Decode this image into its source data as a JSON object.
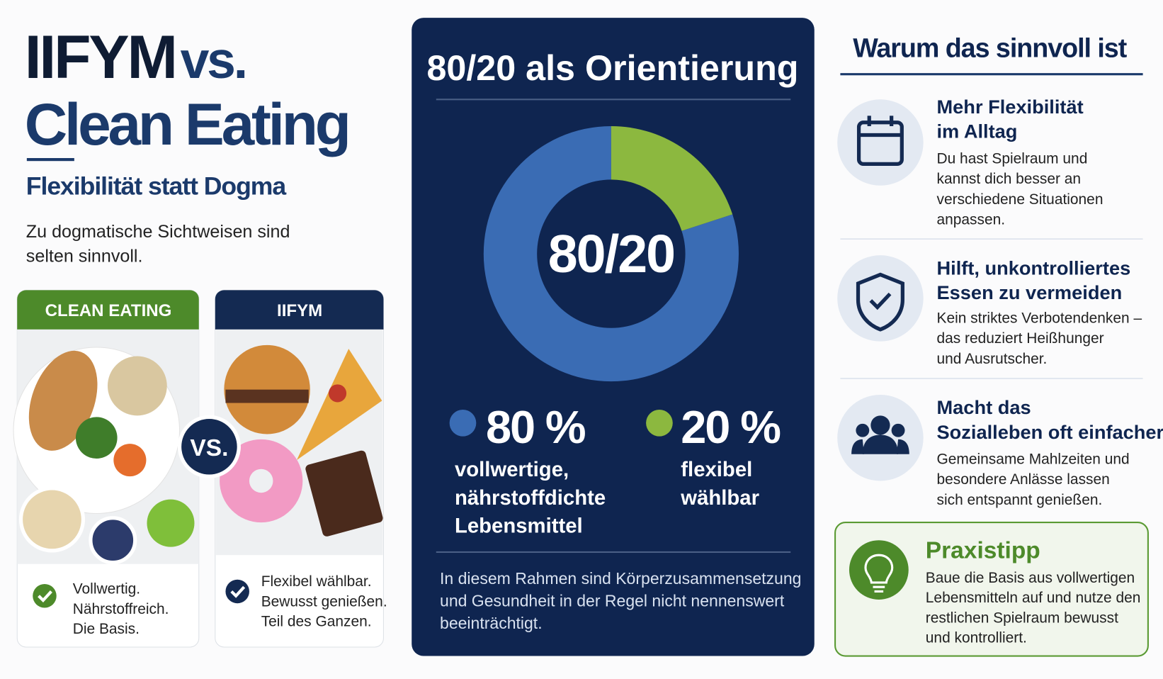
{
  "header": {
    "title_part1": "IIFYM",
    "title_part2": "vs.",
    "title_line2": "Clean Eating",
    "subtitle": "Flexibilität statt Dogma",
    "intro": [
      "Zu dogmatische Sichtweisen sind",
      "selten sinnvoll."
    ]
  },
  "comparison": {
    "vs": "VS.",
    "cards": [
      {
        "label": "CLEAN EATING",
        "text": [
          "Vollwertig.",
          "Nährstoffreich.",
          "Die Basis."
        ]
      },
      {
        "label": "IIFYM",
        "text": [
          "Flexibel wählbar.",
          "Bewusst genießen.",
          "Teil des Ganzen."
        ]
      }
    ]
  },
  "chart_data": {
    "type": "pie",
    "title": "80/20 als Orientierung",
    "center_label": "80/20",
    "categories": [
      [
        "vollwertige,",
        "nährstoffdichte",
        "Lebensmittel"
      ],
      [
        "flexibel",
        "wählbar"
      ]
    ],
    "values": [
      80,
      20
    ],
    "value_labels": [
      "80 %",
      "20 %"
    ],
    "colors": [
      "#3a6cb4",
      "#8cb83f"
    ],
    "note": [
      "In diesem Rahmen sind Körperzusammensetzung",
      "und Gesundheit in der Regel nicht nennenswert",
      "beeinträchtigt."
    ]
  },
  "benefits": {
    "title": "Warum das sinnvoll ist",
    "items": [
      {
        "title": [
          "Mehr Flexibilität",
          "im Alltag"
        ],
        "text": [
          "Du hast Spielraum und",
          "kannst dich besser an",
          "verschiedene Situationen",
          "anpassen."
        ]
      },
      {
        "title": [
          "Hilft, unkontrolliertes",
          "Essen zu vermeiden"
        ],
        "text": [
          "Kein striktes Verbotendenken –",
          "das reduziert Heißhunger",
          "und Ausrutscher."
        ]
      },
      {
        "title": [
          "Macht das",
          "Sozialleben oft einfacher"
        ],
        "text": [
          "Gemeinsame Mahlzeiten und",
          "besondere Anlässe lassen",
          "sich entspannt genießen."
        ]
      }
    ]
  },
  "tip": {
    "title": "Praxistipp",
    "text": [
      "Baue die Basis aus vollwertigen",
      "Lebensmitteln auf und nutze den",
      "restlichen Spielraum bewusst",
      "und kontrolliert."
    ]
  }
}
